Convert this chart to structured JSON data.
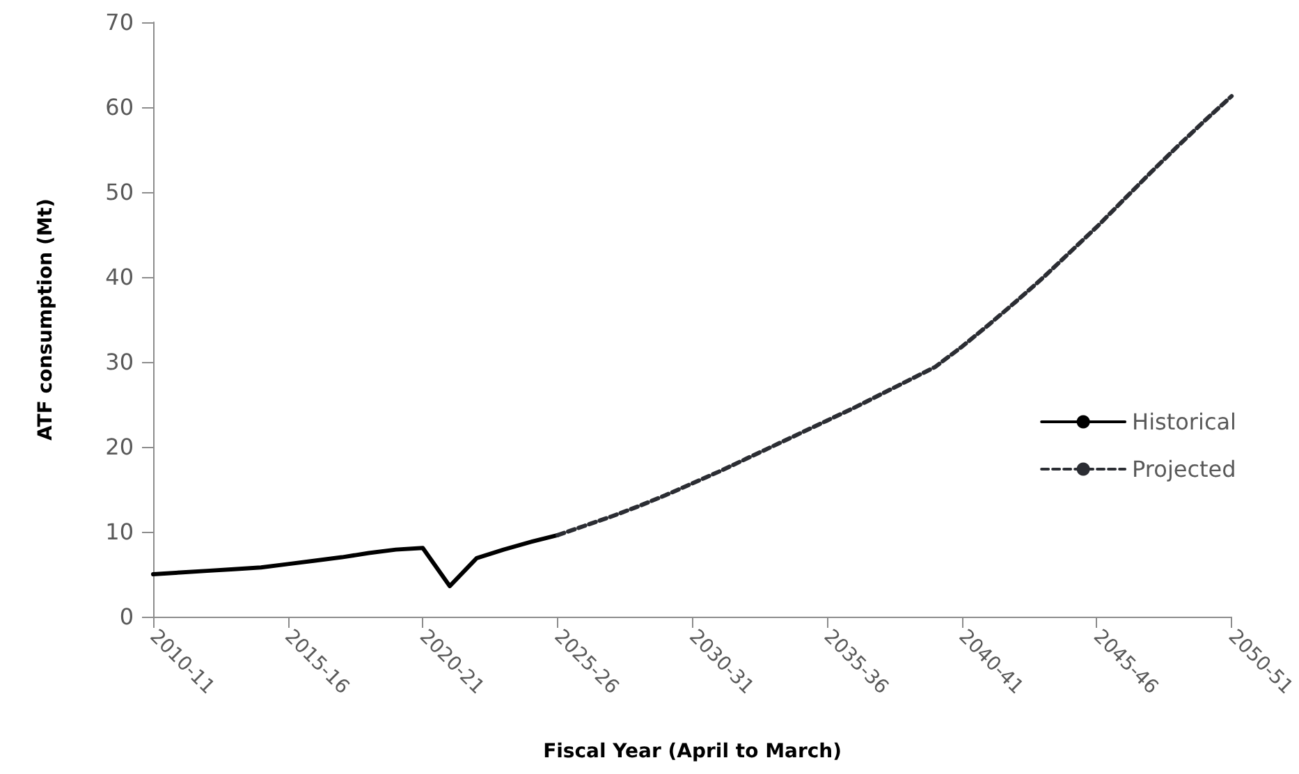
{
  "chart_data": {
    "type": "line",
    "xlabel": "Fiscal Year (April to March)",
    "ylabel": "ATF consumption (Mt)",
    "categories": [
      "2010-11",
      null,
      null,
      null,
      null,
      "2015-16",
      null,
      null,
      null,
      null,
      "2020-21",
      null,
      null,
      null,
      null,
      "2025-26",
      null,
      null,
      null,
      null,
      "2030-31",
      null,
      null,
      null,
      null,
      "2035-36",
      null,
      null,
      null,
      null,
      "2040-41",
      null,
      null,
      null,
      null,
      "2045-46",
      null,
      null,
      null,
      null,
      "2050-51"
    ],
    "series": [
      {
        "name": "Historical",
        "color": "#000000",
        "line_style": "solid",
        "values": [
          5.0,
          5.2,
          5.4,
          5.6,
          5.8,
          6.2,
          6.6,
          7.0,
          7.5,
          7.9,
          8.1,
          3.6,
          6.9,
          7.9,
          8.8,
          9.6,
          null,
          null,
          null,
          null,
          null,
          null,
          null,
          null,
          null,
          null,
          null,
          null,
          null,
          null,
          null,
          null,
          null,
          null,
          null,
          null,
          null,
          null,
          null,
          null,
          null
        ]
      },
      {
        "name": "Projected",
        "color": "#2b2d33",
        "line_style": "dashed",
        "values": [
          null,
          null,
          null,
          null,
          null,
          null,
          null,
          null,
          null,
          null,
          null,
          null,
          null,
          null,
          null,
          9.6,
          10.7,
          11.8,
          13.0,
          14.3,
          15.7,
          17.1,
          18.6,
          20.1,
          21.6,
          23.1,
          24.6,
          26.2,
          27.8,
          29.4,
          31.8,
          34.4,
          37.1,
          39.9,
          42.9,
          45.9,
          49.1,
          52.3,
          55.4,
          58.4,
          61.3
        ]
      }
    ],
    "ylim": [
      0,
      70
    ],
    "yticks": [
      0,
      10,
      20,
      30,
      40,
      50,
      60,
      70
    ],
    "legend": "right",
    "marker": "none"
  }
}
